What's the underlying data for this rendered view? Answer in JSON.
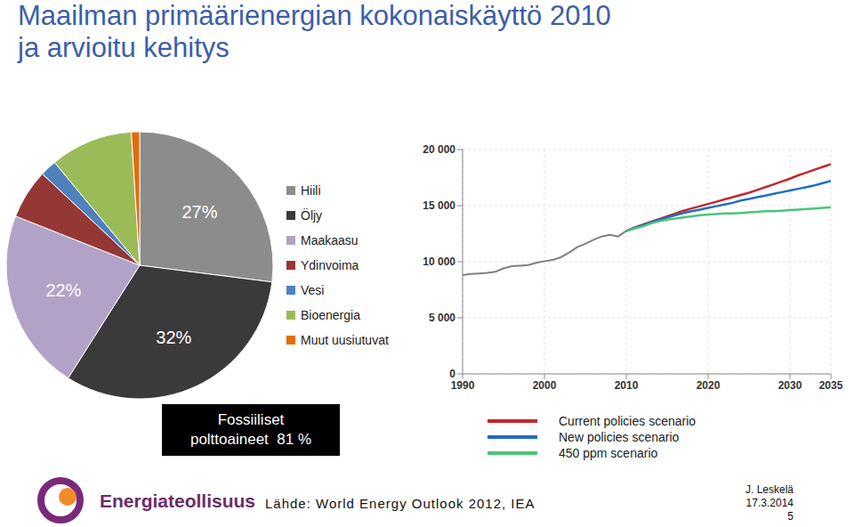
{
  "title": [
    "Maailman primäärienergian kokonaiskäyttö 2010",
    "ja arvioitu kehitys"
  ],
  "chart_data": [
    {
      "type": "pie",
      "categories": [
        "Hiili",
        "Öljy",
        "Maakaasu",
        "Ydinvoima",
        "Vesi",
        "Bioenergia",
        "Muut uusiutuvat"
      ],
      "values": [
        27,
        32,
        22,
        6,
        2,
        10,
        1
      ],
      "value_labels": [
        "27%",
        "32%",
        "22%",
        null,
        null,
        null,
        null
      ],
      "colors": [
        "#8c8c8c",
        "#3a3a3a",
        "#b3a2c7",
        "#953735",
        "#4f81bd",
        "#9bbb59",
        "#e46c0a"
      ],
      "legend": "right",
      "annotations": [
        "Fossiiliset",
        "polttoaineet  81 %"
      ]
    },
    {
      "type": "line",
      "x": [
        1990,
        1991,
        1992,
        1993,
        1994,
        1995,
        1996,
        1997,
        1998,
        1999,
        2000,
        2001,
        2002,
        2003,
        2004,
        2005,
        2006,
        2007,
        2008,
        2009,
        2010,
        2011,
        2012,
        2013,
        2014,
        2015,
        2016,
        2017,
        2018,
        2019,
        2020,
        2021,
        2022,
        2023,
        2024,
        2025,
        2026,
        2027,
        2028,
        2029,
        2030,
        2031,
        2032,
        2033,
        2034,
        2035
      ],
      "series": [
        {
          "color": "#7f7f7f",
          "values": [
            8800,
            8900,
            8950,
            9000,
            9100,
            9400,
            9600,
            9650,
            9700,
            9900,
            10050,
            10150,
            10400,
            10800,
            11300,
            11600,
            11950,
            12250,
            12400,
            12250,
            12750,
            null,
            null,
            null,
            null,
            null,
            null,
            null,
            null,
            null,
            null,
            null,
            null,
            null,
            null,
            null,
            null,
            null,
            null,
            null,
            null,
            null,
            null,
            null,
            null,
            null
          ]
        },
        {
          "name": "Current policies scenario",
          "color": "#c0282d",
          "values": [
            null,
            null,
            null,
            null,
            null,
            null,
            null,
            null,
            null,
            null,
            null,
            null,
            null,
            null,
            null,
            null,
            null,
            null,
            null,
            null,
            12750,
            13050,
            13300,
            13550,
            13800,
            14050,
            14300,
            14550,
            14750,
            14950,
            15150,
            15350,
            15550,
            15750,
            15950,
            16150,
            16400,
            16650,
            16900,
            17150,
            17400,
            17700,
            17950,
            18200,
            18450,
            18700
          ]
        },
        {
          "name": "New policies scenario",
          "color": "#1f6fbf",
          "values": [
            null,
            null,
            null,
            null,
            null,
            null,
            null,
            null,
            null,
            null,
            null,
            null,
            null,
            null,
            null,
            null,
            null,
            null,
            null,
            null,
            12750,
            13000,
            13250,
            13500,
            13750,
            13950,
            14150,
            14350,
            14500,
            14650,
            14800,
            14950,
            15100,
            15250,
            15450,
            15600,
            15750,
            15900,
            16050,
            16200,
            16350,
            16500,
            16650,
            16800,
            17000,
            17200
          ]
        },
        {
          "name": "450 ppm scenario",
          "color": "#4cc47a",
          "values": [
            null,
            null,
            null,
            null,
            null,
            null,
            null,
            null,
            null,
            null,
            null,
            null,
            null,
            null,
            null,
            null,
            null,
            null,
            null,
            null,
            12750,
            12950,
            13150,
            13400,
            13600,
            13750,
            13850,
            13950,
            14050,
            14150,
            14200,
            14250,
            14300,
            14300,
            14350,
            14400,
            14450,
            14500,
            14500,
            14550,
            14600,
            14650,
            14700,
            14750,
            14800,
            14850
          ]
        }
      ],
      "xlim": [
        1990,
        2035
      ],
      "xticks": [
        1990,
        2000,
        2010,
        2020,
        2030,
        2035
      ],
      "ylim": [
        0,
        20000
      ],
      "yticks": [
        0,
        {
          "value": 5000,
          "label": "5 000"
        },
        {
          "value": 10000,
          "label": "10 000"
        },
        {
          "value": 15000,
          "label": "15 000"
        },
        {
          "value": 20000,
          "label": "20 000"
        }
      ],
      "grid": true,
      "legend": "bottom"
    }
  ],
  "footer": {
    "logo": "Energiateollisuus",
    "source": "Lähde: World Energy Outlook 2012, IEA",
    "author": "J. Leskelä",
    "date": "17.3.2014",
    "page": "5"
  }
}
